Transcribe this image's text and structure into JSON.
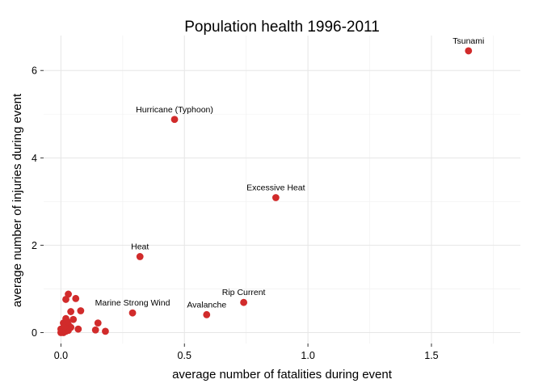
{
  "chart_data": {
    "type": "scatter",
    "title": "Population health 1996-2011",
    "xlabel": "average number of fatalities during event",
    "ylabel": "average number of injuries during event",
    "xlim": [
      -0.07,
      1.86
    ],
    "ylim": [
      -0.25,
      6.8
    ],
    "x_ticks": [
      0.0,
      0.5,
      1.0,
      1.5
    ],
    "x_tick_labels": [
      "0.0",
      "0.5",
      "1.0",
      "1.5"
    ],
    "y_ticks": [
      0,
      2,
      4,
      6
    ],
    "y_tick_labels": [
      "0",
      "2",
      "4",
      "6"
    ],
    "grid": true,
    "legend": "none",
    "point_color": "#d12b2b",
    "points": [
      {
        "x": 1.65,
        "y": 6.45,
        "label": "Tsunami"
      },
      {
        "x": 0.46,
        "y": 4.88,
        "label": "Hurricane (Typhoon)"
      },
      {
        "x": 0.87,
        "y": 3.09,
        "label": "Excessive Heat"
      },
      {
        "x": 0.32,
        "y": 1.74,
        "label": "Heat"
      },
      {
        "x": 0.74,
        "y": 0.69,
        "label": "Rip Current"
      },
      {
        "x": 0.59,
        "y": 0.41,
        "label": "Avalanche"
      },
      {
        "x": 0.29,
        "y": 0.45,
        "label": "Marine Strong Wind"
      },
      {
        "x": 0.03,
        "y": 0.88,
        "label": ""
      },
      {
        "x": 0.02,
        "y": 0.76,
        "label": ""
      },
      {
        "x": 0.06,
        "y": 0.78,
        "label": ""
      },
      {
        "x": 0.08,
        "y": 0.5,
        "label": ""
      },
      {
        "x": 0.04,
        "y": 0.48,
        "label": ""
      },
      {
        "x": 0.05,
        "y": 0.3,
        "label": ""
      },
      {
        "x": 0.02,
        "y": 0.32,
        "label": ""
      },
      {
        "x": 0.01,
        "y": 0.22,
        "label": ""
      },
      {
        "x": 0.03,
        "y": 0.18,
        "label": ""
      },
      {
        "x": 0.15,
        "y": 0.22,
        "label": ""
      },
      {
        "x": 0.14,
        "y": 0.06,
        "label": ""
      },
      {
        "x": 0.18,
        "y": 0.03,
        "label": ""
      },
      {
        "x": 0.07,
        "y": 0.08,
        "label": ""
      },
      {
        "x": 0.04,
        "y": 0.12,
        "label": ""
      },
      {
        "x": 0.02,
        "y": 0.1,
        "label": ""
      },
      {
        "x": 0.01,
        "y": 0.05,
        "label": ""
      },
      {
        "x": 0.005,
        "y": 0.02,
        "label": ""
      },
      {
        "x": 0.0,
        "y": 0.0,
        "label": ""
      },
      {
        "x": 0.01,
        "y": 0.0,
        "label": ""
      },
      {
        "x": 0.02,
        "y": 0.03,
        "label": ""
      },
      {
        "x": 0.03,
        "y": 0.05,
        "label": ""
      },
      {
        "x": 0.0,
        "y": 0.08,
        "label": ""
      },
      {
        "x": 0.015,
        "y": 0.14,
        "label": ""
      },
      {
        "x": 0.025,
        "y": 0.25,
        "label": ""
      }
    ]
  }
}
